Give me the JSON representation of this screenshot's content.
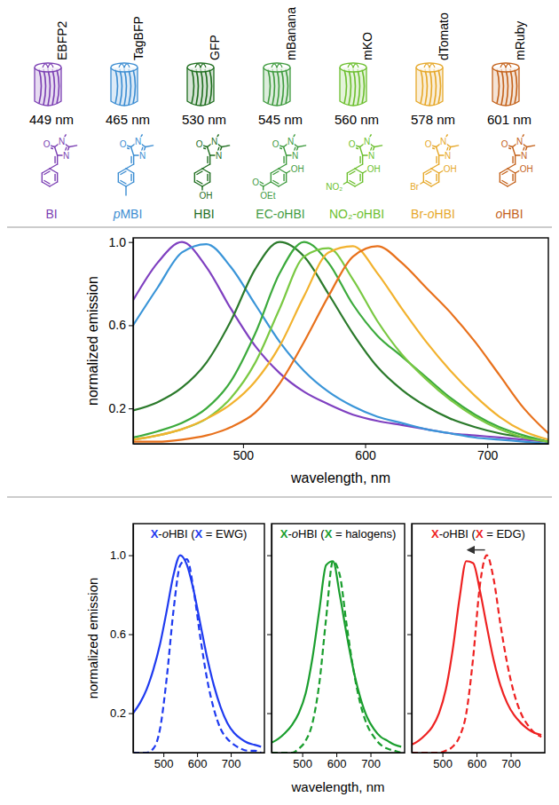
{
  "proteins": [
    {
      "name": "EBFP2",
      "emission": "449 nm",
      "color": "#7b3fb3",
      "chromophore": {
        "label": "BI",
        "atoms": [
          "O",
          "N",
          "N"
        ],
        "substituents": []
      }
    },
    {
      "name": "TagBFP",
      "emission": "465 nm",
      "color": "#3c8dd2",
      "chromophore": {
        "label": "pMBI",
        "atoms": [
          "O",
          "N",
          "N"
        ],
        "substituents": [
          {
            "position": "para"
          }
        ]
      }
    },
    {
      "name": "GFP",
      "emission": "530 nm",
      "color": "#1f6e1f",
      "chromophore": {
        "label": "HBI",
        "atoms": [
          "O",
          "N",
          "N"
        ],
        "substituents": [
          {
            "position": "para",
            "text": "OH"
          }
        ]
      }
    },
    {
      "name": "mBanana",
      "emission": "545 nm",
      "color": "#3f9b3f",
      "chromophore": {
        "label": "EC-oHBI",
        "atoms": [
          "O",
          "N",
          "N"
        ],
        "substituents": [
          {
            "position": "ortho",
            "text": "OH"
          },
          {
            "position": "meta",
            "text": "OEt",
            "carbonyl": "O"
          }
        ]
      }
    },
    {
      "name": "mKO",
      "emission": "560 nm",
      "color": "#6cbf2e",
      "chromophore": {
        "label": "NO₂-oHBI",
        "atoms": [
          "O",
          "N",
          "N"
        ],
        "substituents": [
          {
            "position": "ortho",
            "text": "OH"
          },
          {
            "position": "meta",
            "text": "NO₂"
          }
        ]
      }
    },
    {
      "name": "dTomato",
      "emission": "578 nm",
      "color": "#e6a82a",
      "chromophore": {
        "label": "Br-oHBI",
        "atoms": [
          "O",
          "N",
          "N"
        ],
        "substituents": [
          {
            "position": "ortho",
            "text": "OH"
          },
          {
            "position": "meta",
            "text": "Br"
          }
        ]
      }
    },
    {
      "name": "mRuby",
      "emission": "601 nm",
      "color": "#c4621b",
      "chromophore": {
        "label": "oHBI",
        "atoms": [
          "O",
          "N",
          "N"
        ],
        "substituents": [
          {
            "position": "ortho",
            "text": "OH"
          }
        ]
      }
    }
  ],
  "chart_data": [
    {
      "type": "line",
      "xlabel": "wavelength, nm",
      "ylabel": "normalized emission",
      "x": [
        410,
        430,
        450,
        470,
        490,
        510,
        530,
        550,
        570,
        590,
        610,
        630,
        650,
        670,
        690,
        710,
        730,
        750
      ],
      "xlim": [
        410,
        750
      ],
      "xticks": [
        500,
        600,
        700
      ],
      "ylim": [
        0.03,
        1.02
      ],
      "yticks": [
        0.2,
        0.6,
        {
          "value": 1,
          "label": "1.0"
        }
      ],
      "series": [
        {
          "color": "#7f40c0",
          "values": [
            0.72,
            0.9,
            1.0,
            0.88,
            0.68,
            0.5,
            0.37,
            0.28,
            0.22,
            0.17,
            0.14,
            0.12,
            0.1,
            0.08,
            0.07,
            0.06,
            0.05,
            0.04
          ]
        },
        {
          "color": "#3a95d8",
          "values": [
            0.6,
            0.78,
            0.95,
            0.99,
            0.88,
            0.7,
            0.52,
            0.38,
            0.28,
            0.21,
            0.16,
            0.13,
            0.1,
            0.08,
            0.06,
            0.05,
            0.04,
            0.03
          ]
        },
        {
          "color": "#2b7a2b",
          "values": [
            0.19,
            0.23,
            0.3,
            0.42,
            0.62,
            0.87,
            1.0,
            0.93,
            0.75,
            0.56,
            0.4,
            0.29,
            0.21,
            0.15,
            0.11,
            0.08,
            0.06,
            0.04
          ]
        },
        {
          "color": "#3caa3c",
          "values": [
            0.06,
            0.09,
            0.13,
            0.2,
            0.33,
            0.56,
            0.85,
            1.0,
            0.9,
            0.7,
            0.55,
            0.45,
            0.35,
            0.25,
            0.17,
            0.11,
            0.07,
            0.04
          ]
        },
        {
          "color": "#7ac943",
          "values": [
            0.05,
            0.07,
            0.1,
            0.15,
            0.25,
            0.42,
            0.68,
            0.93,
            0.97,
            0.82,
            0.62,
            0.46,
            0.34,
            0.24,
            0.16,
            0.1,
            0.06,
            0.04
          ]
        },
        {
          "color": "#f2b22e",
          "values": [
            0.05,
            0.07,
            0.1,
            0.15,
            0.22,
            0.33,
            0.5,
            0.74,
            0.95,
            0.98,
            0.85,
            0.68,
            0.52,
            0.38,
            0.26,
            0.16,
            0.09,
            0.05
          ]
        },
        {
          "color": "#e8711c",
          "values": [
            0.04,
            0.04,
            0.05,
            0.07,
            0.11,
            0.18,
            0.32,
            0.52,
            0.74,
            0.93,
            0.98,
            0.9,
            0.78,
            0.66,
            0.52,
            0.36,
            0.2,
            0.08
          ]
        }
      ]
    },
    {
      "type": "line",
      "title": "X-oHBI (X = EWG)",
      "ylabel": "normalized emission",
      "x": [
        410,
        430,
        450,
        470,
        490,
        510,
        530,
        550,
        570,
        590,
        610,
        630,
        650,
        670,
        690,
        710,
        730,
        750,
        770,
        790
      ],
      "xlim": [
        410,
        800
      ],
      "xticks": [
        500,
        600,
        700
      ],
      "ylim": [
        0,
        1.16
      ],
      "yticks": [
        0.2,
        0.6,
        {
          "value": 1,
          "label": "1.0"
        }
      ],
      "series": [
        {
          "color": "#1f3bf0",
          "line_style": "solid",
          "values": [
            0.2,
            0.25,
            0.32,
            0.42,
            0.55,
            0.72,
            0.9,
            1.0,
            0.95,
            0.82,
            0.65,
            0.48,
            0.34,
            0.23,
            0.15,
            0.1,
            0.07,
            0.05,
            0.04,
            0.03
          ]
        },
        {
          "color": "#1f3bf0",
          "line_style": "dashed",
          "values": [
            0,
            0,
            0,
            0.02,
            0.12,
            0.38,
            0.72,
            0.95,
            0.98,
            0.82,
            0.58,
            0.37,
            0.22,
            0.12,
            0.07,
            0.04,
            0.02,
            0.01,
            0.01,
            0
          ]
        }
      ]
    },
    {
      "type": "line",
      "title": "X-oHBI (X = halogens)",
      "xlabel": "wavelength, nm",
      "tick_labels": "x",
      "x": [
        410,
        430,
        450,
        470,
        490,
        510,
        530,
        550,
        570,
        590,
        610,
        630,
        650,
        670,
        690,
        710,
        730,
        750,
        770,
        790
      ],
      "xlim": [
        410,
        800
      ],
      "xticks": [
        500,
        600,
        700
      ],
      "ylim": [
        0,
        1.16
      ],
      "yticks": [
        0.2,
        0.6,
        {
          "value": 1,
          "label": "1.0"
        }
      ],
      "series": [
        {
          "color": "#1a9e2e",
          "line_style": "solid",
          "values": [
            0.05,
            0.07,
            0.1,
            0.14,
            0.2,
            0.3,
            0.48,
            0.72,
            0.95,
            0.97,
            0.8,
            0.6,
            0.42,
            0.28,
            0.18,
            0.12,
            0.08,
            0.06,
            0.04,
            0.03
          ]
        },
        {
          "color": "#1a9e2e",
          "line_style": "dashed",
          "values": [
            0,
            0,
            0,
            0,
            0.02,
            0.06,
            0.15,
            0.35,
            0.68,
            0.97,
            0.9,
            0.65,
            0.42,
            0.25,
            0.14,
            0.08,
            0.04,
            0.02,
            0.01,
            0
          ]
        }
      ]
    },
    {
      "type": "line",
      "title": "X-oHBI (X = EDG)",
      "tick_labels": "x",
      "x": [
        410,
        430,
        450,
        470,
        490,
        510,
        530,
        550,
        570,
        590,
        610,
        630,
        650,
        670,
        690,
        710,
        730,
        750,
        770,
        790
      ],
      "xlim": [
        410,
        800
      ],
      "xticks": [
        500,
        600,
        700
      ],
      "ylim": [
        0,
        1.16
      ],
      "yticks": [
        0.2,
        0.6,
        {
          "value": 1,
          "label": "1.0"
        }
      ],
      "series": [
        {
          "color": "#ee2222",
          "line_style": "solid",
          "values": [
            0.04,
            0.06,
            0.09,
            0.13,
            0.2,
            0.32,
            0.52,
            0.78,
            0.97,
            0.96,
            0.82,
            0.64,
            0.47,
            0.34,
            0.25,
            0.19,
            0.15,
            0.12,
            0.1,
            0.09
          ]
        },
        {
          "color": "#ee2222",
          "line_style": "dashed",
          "values": [
            0,
            0,
            0,
            0,
            0,
            0.01,
            0.03,
            0.08,
            0.2,
            0.48,
            0.85,
            1.0,
            0.88,
            0.65,
            0.45,
            0.3,
            0.2,
            0.14,
            0.1,
            0.08
          ]
        }
      ]
    }
  ]
}
